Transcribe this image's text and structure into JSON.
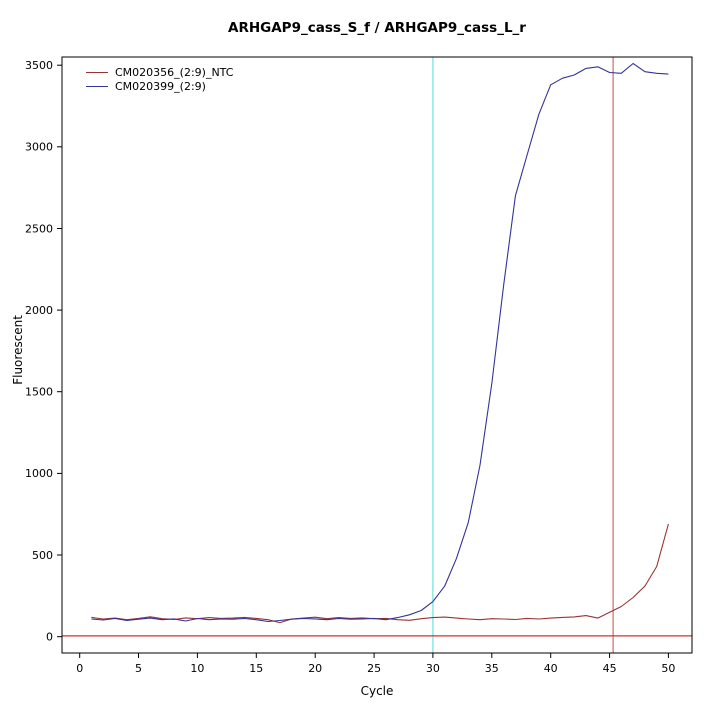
{
  "chart_data": {
    "type": "line",
    "title": "ARHGAP9_cass_S_f / ARHGAP9_cass_L_r",
    "xlabel": "Cycle",
    "ylabel": "Fluorescent",
    "xlim": [
      0,
      50
    ],
    "ylim": [
      0,
      3500
    ],
    "x_ticks": [
      0,
      5,
      10,
      15,
      20,
      25,
      30,
      35,
      40,
      45,
      50
    ],
    "y_ticks": [
      0,
      500,
      1000,
      1500,
      2000,
      2500,
      3000,
      3500
    ],
    "grid": false,
    "legend_position": "top-left",
    "x": [
      1,
      2,
      3,
      4,
      5,
      6,
      7,
      8,
      9,
      10,
      11,
      12,
      13,
      14,
      15,
      16,
      17,
      18,
      19,
      20,
      21,
      22,
      23,
      24,
      25,
      26,
      27,
      28,
      29,
      30,
      31,
      32,
      33,
      34,
      35,
      36,
      37,
      38,
      39,
      40,
      41,
      42,
      43,
      44,
      45,
      46,
      47,
      48,
      49,
      50
    ],
    "series": [
      {
        "name": "CM020356_(2:9)_NTC",
        "color": "#993333",
        "values": [
          118,
          108,
          114,
          104,
          112,
          122,
          110,
          105,
          115,
          110,
          117,
          112,
          114,
          118,
          112,
          104,
          86,
          108,
          114,
          119,
          110,
          117,
          112,
          115,
          110,
          112,
          104,
          100,
          110,
          117,
          120,
          114,
          108,
          104,
          110,
          108,
          105,
          112,
          108,
          114,
          118,
          121,
          129,
          114,
          150,
          185,
          240,
          310,
          430,
          690
        ]
      },
      {
        "name": "CM020399_(2:9)",
        "color": "#333399",
        "values": [
          108,
          102,
          112,
          99,
          107,
          114,
          104,
          109,
          96,
          111,
          104,
          109,
          107,
          111,
          104,
          93,
          99,
          107,
          111,
          109,
          104,
          111,
          107,
          109,
          112,
          104,
          117,
          134,
          160,
          215,
          310,
          480,
          700,
          1050,
          1550,
          2150,
          2700,
          2950,
          3200,
          3380,
          3420,
          3440,
          3480,
          3490,
          3455,
          3450,
          3510,
          3460,
          3450,
          3445
        ]
      }
    ],
    "reference_lines": {
      "vertical": [
        {
          "x": 30,
          "color": "#6fe0e0"
        },
        {
          "x": 45.3,
          "color": "#d46a6a"
        }
      ],
      "horizontal": [
        {
          "y": 5,
          "color": "#cc3333"
        }
      ]
    }
  }
}
